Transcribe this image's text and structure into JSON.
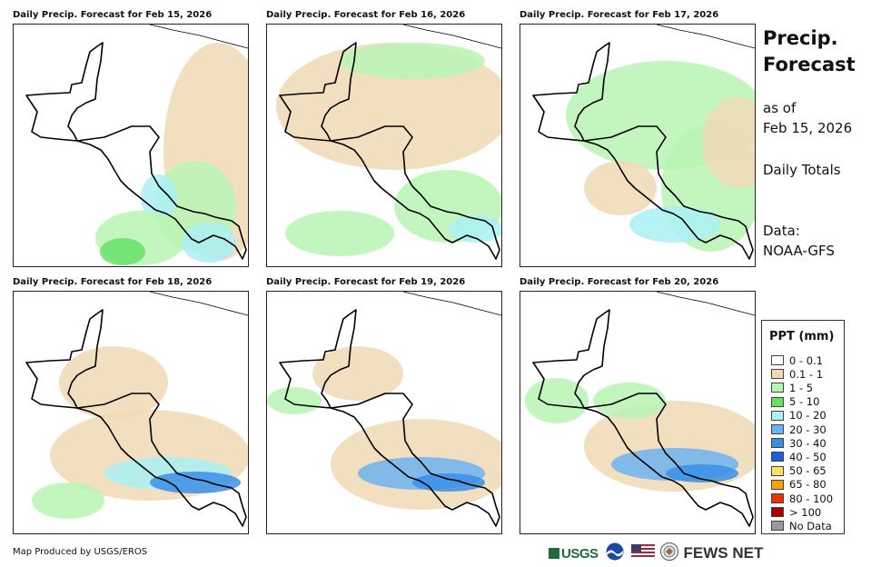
{
  "panels": [
    {
      "title": "Daily Precip. Forecast for Feb 15, 2026"
    },
    {
      "title": "Daily Precip. Forecast for Feb 16, 2026"
    },
    {
      "title": "Daily Precip. Forecast for Feb 17, 2026"
    },
    {
      "title": "Daily Precip. Forecast for Feb 18, 2026"
    },
    {
      "title": "Daily Precip. Forecast for Feb 19, 2026"
    },
    {
      "title": "Daily Precip. Forecast for Feb 20, 2026"
    }
  ],
  "sidebar": {
    "title": "Precip. Forecast",
    "as_of_label": "as of",
    "as_of_date": "Feb 15, 2026",
    "totals": "Daily Totals",
    "data_label": "Data:",
    "data_source": "NOAA-GFS"
  },
  "legend": {
    "title": "PPT (mm)",
    "items": [
      {
        "label": "0 - 0.1",
        "color": "#ffffff"
      },
      {
        "label": "0.1 - 1",
        "color": "#f0d9b5"
      },
      {
        "label": "1 - 5",
        "color": "#b9f5b4"
      },
      {
        "label": "5 - 10",
        "color": "#66e066"
      },
      {
        "label": "10 - 20",
        "color": "#aaf0f4"
      },
      {
        "label": "20 - 30",
        "color": "#6db4f0"
      },
      {
        "label": "30 - 40",
        "color": "#3a8fe8"
      },
      {
        "label": "40 - 50",
        "color": "#1f5fd6"
      },
      {
        "label": "50 - 65",
        "color": "#ffe066"
      },
      {
        "label": "65 - 80",
        "color": "#f4a300"
      },
      {
        "label": "80 - 100",
        "color": "#ee3300"
      },
      {
        "label": "> 100",
        "color": "#a80000"
      },
      {
        "label": "No Data",
        "color": "#999999"
      }
    ]
  },
  "footer": {
    "credit": "Map Produced by USGS/EROS",
    "usgs_logo": "USGS",
    "fews_label": "FEWS NET",
    "icons": [
      "noaa-logo-icon",
      "us-flag-icon",
      "state-department-seal-icon"
    ]
  }
}
